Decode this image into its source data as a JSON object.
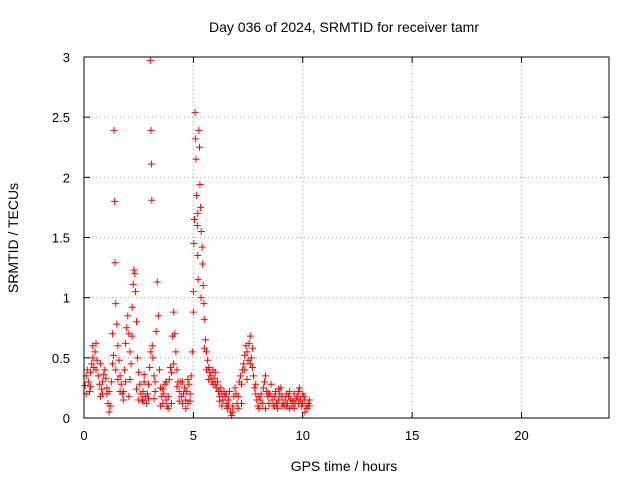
{
  "chart_data": {
    "type": "scatter",
    "title": "Day 036 of 2024, SRMTID for receiver tamr",
    "xlabel": "GPS time / hours",
    "ylabel": "SRMTID / TECUs",
    "xlim": [
      0,
      24
    ],
    "ylim": [
      0,
      3
    ],
    "xticks": [
      0,
      5,
      10,
      15,
      20
    ],
    "xtick_labels": [
      "0",
      "5",
      "10",
      "15",
      "20"
    ],
    "yticks": [
      0,
      0.5,
      1,
      1.5,
      2,
      2.5,
      3
    ],
    "ytick_labels": [
      "0",
      "0.5",
      "1",
      "1.5",
      "2",
      "2.5",
      "3"
    ],
    "grid": true,
    "marker": "plus",
    "color": "#ff0000",
    "series": [
      {
        "name": "SRMTID",
        "points": [
          [
            0.05,
            0.27
          ],
          [
            0.1,
            0.35
          ],
          [
            0.15,
            0.4
          ],
          [
            0.2,
            0.3
          ],
          [
            0.25,
            0.22
          ],
          [
            0.3,
            0.38
          ],
          [
            0.35,
            0.45
          ],
          [
            0.4,
            0.5
          ],
          [
            0.45,
            0.42
          ],
          [
            0.5,
            0.55
          ],
          [
            0.55,
            0.62
          ],
          [
            0.6,
            0.48
          ],
          [
            0.65,
            0.35
          ],
          [
            0.7,
            0.28
          ],
          [
            0.75,
            0.18
          ],
          [
            0.8,
            0.24
          ],
          [
            0.85,
            0.3
          ],
          [
            0.9,
            0.36
          ],
          [
            0.95,
            0.4
          ],
          [
            1.0,
            0.33
          ],
          [
            1.05,
            0.25
          ],
          [
            1.1,
            0.12
          ],
          [
            1.15,
            0.05
          ],
          [
            1.2,
            0.1
          ],
          [
            1.25,
            0.3
          ],
          [
            1.3,
            0.45
          ],
          [
            1.35,
            0.52
          ],
          [
            1.37,
            2.39
          ],
          [
            1.4,
            1.8
          ],
          [
            1.42,
            1.29
          ],
          [
            1.45,
            0.95
          ],
          [
            1.5,
            0.78
          ],
          [
            1.55,
            0.6
          ],
          [
            1.6,
            0.48
          ],
          [
            1.65,
            0.35
          ],
          [
            1.7,
            0.28
          ],
          [
            1.75,
            0.2
          ],
          [
            1.8,
            0.22
          ],
          [
            1.85,
            0.4
          ],
          [
            1.9,
            0.62
          ],
          [
            1.95,
            0.75
          ],
          [
            2.0,
            0.85
          ],
          [
            2.05,
            0.7
          ],
          [
            2.1,
            0.55
          ],
          [
            2.15,
            0.45
          ],
          [
            2.2,
            0.92
          ],
          [
            2.25,
            1.11
          ],
          [
            2.28,
            1.23
          ],
          [
            2.32,
            1.2
          ],
          [
            2.35,
            1.05
          ],
          [
            2.4,
            0.8
          ],
          [
            2.45,
            0.5
          ],
          [
            2.5,
            0.38
          ],
          [
            2.55,
            0.28
          ],
          [
            2.6,
            0.2
          ],
          [
            2.65,
            0.15
          ],
          [
            2.7,
            0.22
          ],
          [
            2.75,
            0.3
          ],
          [
            2.8,
            0.18
          ],
          [
            2.85,
            0.12
          ],
          [
            2.9,
            0.2
          ],
          [
            2.95,
            0.28
          ],
          [
            3.0,
            0.42
          ],
          [
            3.03,
            2.97
          ],
          [
            3.06,
            2.39
          ],
          [
            3.08,
            2.11
          ],
          [
            3.1,
            1.81
          ],
          [
            3.12,
            0.6
          ],
          [
            3.15,
            0.5
          ],
          [
            3.2,
            0.35
          ],
          [
            3.25,
            0.22
          ],
          [
            3.3,
            0.72
          ],
          [
            3.35,
            1.13
          ],
          [
            3.4,
            0.85
          ],
          [
            3.45,
            0.4
          ],
          [
            3.5,
            0.25
          ],
          [
            3.55,
            0.18
          ],
          [
            3.6,
            0.12
          ],
          [
            3.65,
            0.2
          ],
          [
            3.7,
            0.28
          ],
          [
            3.75,
            0.15
          ],
          [
            3.8,
            0.1
          ],
          [
            3.85,
            0.18
          ],
          [
            3.9,
            0.32
          ],
          [
            3.95,
            0.42
          ],
          [
            4.0,
            0.38
          ],
          [
            4.05,
            0.68
          ],
          [
            4.1,
            0.88
          ],
          [
            4.15,
            0.7
          ],
          [
            4.2,
            0.55
          ],
          [
            4.25,
            0.4
          ],
          [
            4.3,
            0.3
          ],
          [
            4.35,
            0.22
          ],
          [
            4.4,
            0.3
          ],
          [
            4.45,
            0.18
          ],
          [
            4.5,
            0.12
          ],
          [
            4.55,
            0.2
          ],
          [
            4.6,
            0.25
          ],
          [
            4.65,
            0.15
          ],
          [
            4.7,
            0.22
          ],
          [
            4.75,
            0.32
          ],
          [
            4.8,
            0.28
          ],
          [
            4.85,
            0.2
          ],
          [
            4.9,
            0.35
          ],
          [
            4.95,
            0.55
          ],
          [
            5.0,
            0.88
          ],
          [
            5.02,
            1.45
          ],
          [
            5.05,
            1.65
          ],
          [
            5.08,
            2.54
          ],
          [
            5.1,
            2.32
          ],
          [
            5.12,
            2.15
          ],
          [
            5.15,
            1.85
          ],
          [
            5.18,
            1.6
          ],
          [
            5.2,
            1.35
          ],
          [
            5.22,
            1.15
          ],
          [
            5.25,
            2.39
          ],
          [
            5.28,
            2.25
          ],
          [
            5.3,
            1.94
          ],
          [
            5.33,
            1.75
          ],
          [
            5.36,
            1.55
          ],
          [
            5.4,
            1.42
          ],
          [
            5.42,
            1.28
          ],
          [
            5.45,
            1.1
          ],
          [
            5.48,
            0.95
          ],
          [
            5.5,
            0.82
          ],
          [
            5.55,
            0.65
          ],
          [
            5.6,
            0.55
          ],
          [
            5.65,
            0.48
          ],
          [
            5.7,
            0.42
          ],
          [
            5.75,
            0.38
          ],
          [
            5.8,
            0.35
          ],
          [
            5.85,
            0.3
          ],
          [
            5.9,
            0.4
          ],
          [
            5.95,
            0.33
          ],
          [
            6.0,
            0.28
          ],
          [
            6.05,
            0.25
          ],
          [
            6.1,
            0.3
          ],
          [
            6.15,
            0.22
          ],
          [
            6.2,
            0.18
          ],
          [
            6.25,
            0.25
          ],
          [
            6.3,
            0.2
          ],
          [
            6.35,
            0.15
          ],
          [
            6.4,
            0.22
          ],
          [
            6.45,
            0.18
          ],
          [
            6.5,
            0.12
          ],
          [
            6.55,
            0.08
          ],
          [
            6.6,
            0.15
          ],
          [
            6.65,
            0.22
          ],
          [
            6.7,
            0.05
          ],
          [
            6.75,
            0.02
          ],
          [
            6.8,
            0.1
          ],
          [
            6.85,
            0.18
          ],
          [
            6.9,
            0.25
          ],
          [
            6.95,
            0.2
          ],
          [
            7.0,
            0.12
          ],
          [
            7.05,
            0.18
          ],
          [
            7.1,
            0.3
          ],
          [
            7.15,
            0.35
          ],
          [
            7.2,
            0.28
          ],
          [
            7.25,
            0.4
          ],
          [
            7.3,
            0.45
          ],
          [
            7.35,
            0.52
          ],
          [
            7.4,
            0.6
          ],
          [
            7.45,
            0.55
          ],
          [
            7.5,
            0.48
          ],
          [
            7.55,
            0.62
          ],
          [
            7.6,
            0.68
          ],
          [
            7.65,
            0.5
          ],
          [
            7.7,
            0.42
          ],
          [
            7.75,
            0.35
          ],
          [
            7.8,
            0.25
          ],
          [
            7.85,
            0.2
          ],
          [
            7.9,
            0.15
          ],
          [
            7.95,
            0.1
          ],
          [
            8.0,
            0.08
          ],
          [
            8.05,
            0.15
          ],
          [
            8.1,
            0.2
          ],
          [
            8.15,
            0.12
          ],
          [
            8.2,
            0.25
          ],
          [
            8.25,
            0.3
          ],
          [
            8.3,
            0.35
          ],
          [
            8.35,
            0.22
          ],
          [
            8.4,
            0.18
          ],
          [
            8.45,
            0.12
          ],
          [
            8.5,
            0.2
          ],
          [
            8.55,
            0.28
          ],
          [
            8.6,
            0.15
          ],
          [
            8.65,
            0.1
          ],
          [
            8.7,
            0.18
          ],
          [
            8.75,
            0.22
          ],
          [
            8.8,
            0.12
          ],
          [
            8.85,
            0.08
          ],
          [
            8.9,
            0.15
          ],
          [
            8.95,
            0.2
          ],
          [
            9.0,
            0.25
          ],
          [
            9.05,
            0.18
          ],
          [
            9.1,
            0.12
          ],
          [
            9.15,
            0.1
          ],
          [
            9.2,
            0.15
          ],
          [
            9.25,
            0.2
          ],
          [
            9.3,
            0.12
          ],
          [
            9.35,
            0.18
          ],
          [
            9.4,
            0.22
          ],
          [
            9.45,
            0.15
          ],
          [
            9.5,
            0.1
          ],
          [
            9.55,
            0.14
          ],
          [
            9.6,
            0.2
          ],
          [
            9.65,
            0.12
          ],
          [
            9.7,
            0.16
          ],
          [
            9.75,
            0.18
          ],
          [
            9.8,
            0.22
          ],
          [
            9.85,
            0.25
          ],
          [
            9.9,
            0.15
          ],
          [
            9.95,
            0.1
          ],
          [
            10.0,
            0.12
          ],
          [
            10.05,
            0.18
          ],
          [
            10.1,
            0.15
          ],
          [
            10.15,
            0.1
          ],
          [
            10.2,
            0.08
          ],
          [
            10.25,
            0.12
          ],
          [
            10.3,
            0.1
          ],
          [
            0.1,
            0.2
          ],
          [
            0.3,
            0.26
          ],
          [
            0.55,
            0.4
          ],
          [
            0.85,
            0.2
          ],
          [
            1.15,
            0.22
          ],
          [
            1.45,
            0.4
          ],
          [
            1.65,
            0.22
          ],
          [
            1.9,
            0.3
          ],
          [
            2.1,
            0.32
          ],
          [
            2.4,
            0.24
          ],
          [
            2.7,
            0.14
          ],
          [
            2.95,
            0.16
          ],
          [
            3.2,
            0.16
          ],
          [
            3.6,
            0.24
          ],
          [
            3.85,
            0.08
          ],
          [
            4.1,
            0.45
          ],
          [
            4.35,
            0.14
          ],
          [
            4.65,
            0.08
          ],
          [
            4.85,
            0.14
          ],
          [
            5.6,
            0.4
          ],
          [
            5.9,
            0.28
          ],
          [
            6.2,
            0.14
          ],
          [
            6.6,
            0.1
          ],
          [
            7.05,
            0.08
          ],
          [
            7.35,
            0.4
          ],
          [
            7.6,
            0.45
          ],
          [
            7.85,
            0.28
          ],
          [
            8.3,
            0.08
          ],
          [
            8.7,
            0.1
          ],
          [
            9.05,
            0.1
          ],
          [
            9.4,
            0.08
          ],
          [
            9.8,
            0.12
          ],
          [
            10.1,
            0.05
          ],
          [
            0.4,
            0.6
          ],
          [
            0.75,
            0.45
          ],
          [
            1.05,
            0.2
          ],
          [
            1.3,
            0.7
          ],
          [
            1.55,
            0.32
          ],
          [
            1.8,
            0.15
          ],
          [
            2.05,
            0.18
          ],
          [
            2.2,
            0.68
          ],
          [
            2.5,
            0.15
          ],
          [
            2.75,
            0.36
          ],
          [
            3.05,
            0.55
          ],
          [
            3.25,
            0.3
          ],
          [
            3.5,
            0.1
          ],
          [
            3.75,
            0.3
          ],
          [
            4.0,
            0.12
          ],
          [
            4.25,
            0.26
          ],
          [
            4.5,
            0.3
          ],
          [
            4.75,
            0.12
          ],
          [
            5.0,
            1.05
          ],
          [
            5.2,
            1.7
          ],
          [
            5.35,
            1.0
          ],
          [
            5.5,
            0.58
          ],
          [
            5.7,
            0.32
          ],
          [
            6.0,
            0.38
          ],
          [
            6.3,
            0.1
          ],
          [
            6.5,
            0.2
          ],
          [
            6.8,
            0.05
          ],
          [
            7.2,
            0.12
          ],
          [
            7.45,
            0.32
          ],
          [
            7.7,
            0.58
          ],
          [
            8.0,
            0.18
          ],
          [
            8.45,
            0.2
          ],
          [
            8.9,
            0.24
          ],
          [
            9.25,
            0.1
          ],
          [
            9.6,
            0.08
          ],
          [
            10.0,
            0.2
          ],
          [
            10.3,
            0.15
          ]
        ]
      }
    ]
  }
}
